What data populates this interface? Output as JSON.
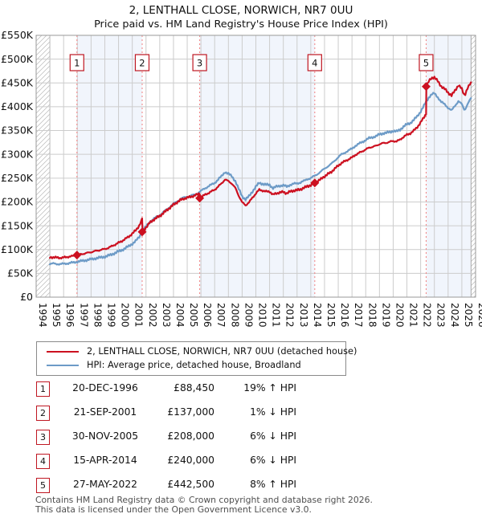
{
  "title": "2, LENTHALL CLOSE, NORWICH, NR7 0UU",
  "subtitle": "Price paid vs. HM Land Registry's House Price Index (HPI)",
  "chart_data": {
    "type": "line",
    "x_range": [
      1994,
      2026
    ],
    "ylim_k": [
      0,
      550
    ],
    "y_tick_step_k": 50,
    "y_tick_labels": [
      "£0",
      "£50K",
      "£100K",
      "£150K",
      "£200K",
      "£250K",
      "£300K",
      "£350K",
      "£400K",
      "£450K",
      "£500K",
      "£550K"
    ],
    "x_tick_labels": [
      "1994",
      "1995",
      "1996",
      "1997",
      "1998",
      "1999",
      "2000",
      "2001",
      "2002",
      "2003",
      "2004",
      "2005",
      "2006",
      "2007",
      "2008",
      "2009",
      "2010",
      "2011",
      "2012",
      "2013",
      "2014",
      "2015",
      "2016",
      "2017",
      "2018",
      "2019",
      "2020",
      "2021",
      "2022",
      "2023",
      "2024",
      "2025",
      "2026"
    ],
    "grid": true,
    "band_color": "#f1f5fc",
    "grid_color": "#cccccc",
    "border_color": "#999999",
    "sale_line_color": "#f28080",
    "data_start": 1995.0,
    "data_end": 2025.67,
    "series": [
      {
        "name": "2, LENTHALL CLOSE, NORWICH, NR7 0UU (detached house)",
        "color": "#cc1020",
        "note": "price-paid line: HPI series rescaled through each sale",
        "scale_segments": [
          {
            "until": 2001.72,
            "factor": 1.19
          },
          {
            "until": 2005.91,
            "factor": 0.99
          },
          {
            "until": 2022.4,
            "factor": 0.94
          },
          {
            "until": 2026.0,
            "factor": 1.08
          }
        ]
      },
      {
        "name": "HPI: Average price, detached house, Broadland",
        "color": "#6d9bc7",
        "points_year_valueK": [
          [
            1995.0,
            70
          ],
          [
            1995.25,
            70.5
          ],
          [
            1995.5,
            69.8
          ],
          [
            1995.75,
            69.3
          ],
          [
            1996.0,
            70
          ],
          [
            1996.25,
            70.8
          ],
          [
            1996.5,
            71.8
          ],
          [
            1996.75,
            73
          ],
          [
            1996.97,
            74.3
          ],
          [
            1997.25,
            75.6
          ],
          [
            1997.5,
            77
          ],
          [
            1997.75,
            78.2
          ],
          [
            1998.0,
            79.5
          ],
          [
            1998.25,
            81
          ],
          [
            1998.5,
            82.4
          ],
          [
            1998.75,
            83.6
          ],
          [
            1999.0,
            85
          ],
          [
            1999.25,
            87
          ],
          [
            1999.5,
            89.8
          ],
          [
            1999.75,
            92.8
          ],
          [
            2000.0,
            96
          ],
          [
            2000.25,
            99
          ],
          [
            2000.5,
            103
          ],
          [
            2000.75,
            107
          ],
          [
            2001.0,
            112
          ],
          [
            2001.25,
            118
          ],
          [
            2001.5,
            126
          ],
          [
            2001.7,
            136
          ],
          [
            2001.72,
            138.4
          ],
          [
            2002.0,
            148
          ],
          [
            2002.25,
            157
          ],
          [
            2002.5,
            163
          ],
          [
            2002.75,
            168
          ],
          [
            2003.0,
            172
          ],
          [
            2003.25,
            178
          ],
          [
            2003.5,
            184
          ],
          [
            2003.75,
            190
          ],
          [
            2004.0,
            196
          ],
          [
            2004.25,
            201
          ],
          [
            2004.5,
            206
          ],
          [
            2004.75,
            209
          ],
          [
            2005.0,
            211
          ],
          [
            2005.25,
            213
          ],
          [
            2005.5,
            215
          ],
          [
            2005.75,
            218
          ],
          [
            2005.91,
            221
          ],
          [
            2006.25,
            228
          ],
          [
            2006.5,
            232
          ],
          [
            2006.75,
            236
          ],
          [
            2007.0,
            240
          ],
          [
            2007.25,
            247
          ],
          [
            2007.5,
            254
          ],
          [
            2007.75,
            263
          ],
          [
            2008.0,
            259
          ],
          [
            2008.25,
            254
          ],
          [
            2008.5,
            244
          ],
          [
            2008.75,
            227
          ],
          [
            2009.0,
            212
          ],
          [
            2009.25,
            205
          ],
          [
            2009.5,
            212
          ],
          [
            2009.75,
            222
          ],
          [
            2010.0,
            232
          ],
          [
            2010.25,
            240
          ],
          [
            2010.5,
            238
          ],
          [
            2010.75,
            236
          ],
          [
            2011.0,
            236
          ],
          [
            2011.25,
            229
          ],
          [
            2011.5,
            232
          ],
          [
            2011.75,
            234
          ],
          [
            2012.0,
            235
          ],
          [
            2012.25,
            232
          ],
          [
            2012.5,
            236
          ],
          [
            2012.75,
            238
          ],
          [
            2013.0,
            239
          ],
          [
            2013.25,
            241
          ],
          [
            2013.5,
            244
          ],
          [
            2013.75,
            248
          ],
          [
            2014.0,
            250
          ],
          [
            2014.29,
            255
          ],
          [
            2014.5,
            259
          ],
          [
            2014.75,
            264
          ],
          [
            2015.0,
            270
          ],
          [
            2015.25,
            275
          ],
          [
            2015.5,
            280
          ],
          [
            2015.75,
            287
          ],
          [
            2016.0,
            294
          ],
          [
            2016.25,
            300
          ],
          [
            2016.5,
            304
          ],
          [
            2016.75,
            308
          ],
          [
            2017.0,
            312
          ],
          [
            2017.25,
            318
          ],
          [
            2017.5,
            322
          ],
          [
            2017.75,
            326
          ],
          [
            2018.0,
            330
          ],
          [
            2018.25,
            334
          ],
          [
            2018.5,
            336
          ],
          [
            2018.75,
            338
          ],
          [
            2019.0,
            342
          ],
          [
            2019.25,
            344
          ],
          [
            2019.5,
            345
          ],
          [
            2019.75,
            347
          ],
          [
            2020.0,
            349
          ],
          [
            2020.25,
            348
          ],
          [
            2020.5,
            352
          ],
          [
            2020.75,
            358
          ],
          [
            2021.0,
            363
          ],
          [
            2021.25,
            366
          ],
          [
            2021.5,
            372
          ],
          [
            2021.75,
            380
          ],
          [
            2022.0,
            390
          ],
          [
            2022.2,
            400
          ],
          [
            2022.4,
            410
          ],
          [
            2022.6,
            420
          ],
          [
            2022.8,
            426
          ],
          [
            2023.0,
            428
          ],
          [
            2023.25,
            420
          ],
          [
            2023.5,
            410
          ],
          [
            2023.75,
            405
          ],
          [
            2024.0,
            398
          ],
          [
            2024.25,
            392
          ],
          [
            2024.5,
            402
          ],
          [
            2024.75,
            412
          ],
          [
            2025.0,
            405
          ],
          [
            2025.2,
            392
          ],
          [
            2025.4,
            405
          ],
          [
            2025.6,
            415
          ],
          [
            2025.67,
            417
          ]
        ]
      }
    ],
    "sales": [
      {
        "label": "1",
        "year": 1996.97,
        "price": 88450
      },
      {
        "label": "2",
        "year": 2001.72,
        "price": 137000
      },
      {
        "label": "3",
        "year": 2005.91,
        "price": 208000
      },
      {
        "label": "4",
        "year": 2014.29,
        "price": 240000
      },
      {
        "label": "5",
        "year": 2022.4,
        "price": 442500
      }
    ],
    "shaded_band_pairs": [
      [
        0,
        1
      ],
      [
        2,
        3
      ],
      [
        4,
        -1
      ]
    ]
  },
  "legend": [
    {
      "label": "2, LENTHALL CLOSE, NORWICH, NR7 0UU (detached house)",
      "color": "#cc1020"
    },
    {
      "label": "HPI: Average price, detached house, Broadland",
      "color": "#6d9bc7"
    }
  ],
  "table": {
    "rows": [
      {
        "num": "1",
        "date": "20-DEC-1996",
        "price": "£88,450",
        "hpi": "19% ↑ HPI"
      },
      {
        "num": "2",
        "date": "21-SEP-2001",
        "price": "£137,000",
        "hpi": "1% ↓ HPI"
      },
      {
        "num": "3",
        "date": "30-NOV-2005",
        "price": "£208,000",
        "hpi": "6% ↓ HPI"
      },
      {
        "num": "4",
        "date": "15-APR-2014",
        "price": "£240,000",
        "hpi": "6% ↓ HPI"
      },
      {
        "num": "5",
        "date": "27-MAY-2022",
        "price": "£442,500",
        "hpi": "8% ↑ HPI"
      }
    ]
  },
  "footer": {
    "line1": "Contains HM Land Registry data © Crown copyright and database right 2026.",
    "line2": "This data is licensed under the Open Government Licence v3.0."
  }
}
